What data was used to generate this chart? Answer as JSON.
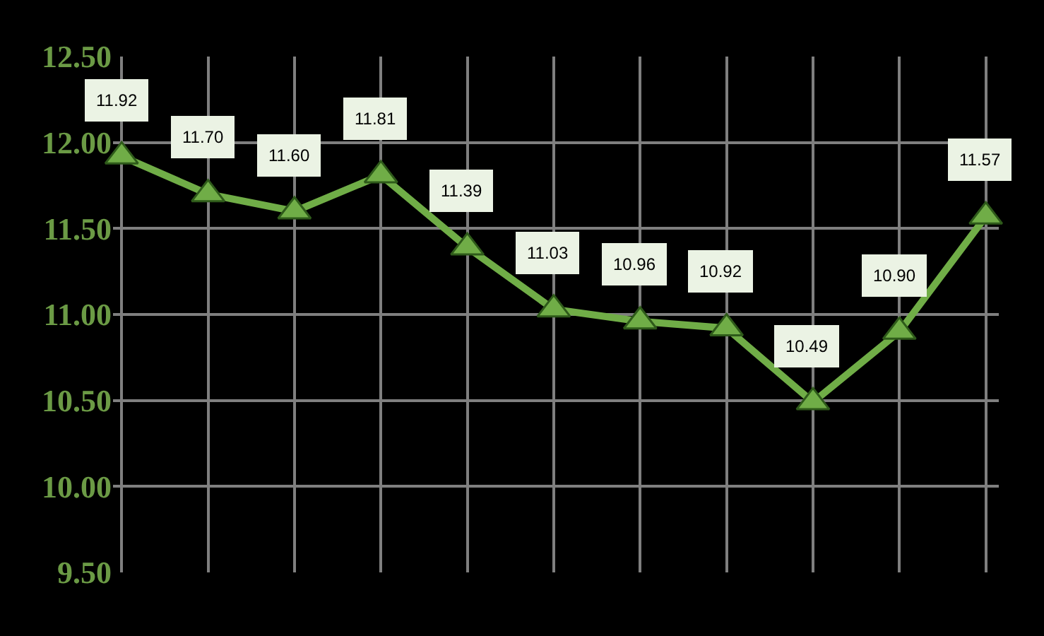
{
  "chart_data": {
    "type": "line",
    "categories": [
      null,
      null,
      null,
      null,
      null,
      null,
      null,
      null,
      null,
      null,
      null
    ],
    "series": [
      {
        "color": "#70ad47",
        "values": [
          11.92,
          11.7,
          11.6,
          11.81,
          11.39,
          11.03,
          10.96,
          10.92,
          10.49,
          10.9,
          11.57
        ],
        "value_labels": [
          "11.92",
          "11.70",
          "11.60",
          "11.81",
          "11.39",
          "11.03",
          "10.96",
          "10.92",
          "10.49",
          "10.90",
          "11.57"
        ]
      }
    ],
    "ylim": [
      9.5,
      12.5
    ],
    "yticks": [
      {
        "value": 9.5,
        "label": "9.50"
      },
      {
        "value": 10,
        "label": "10.00"
      },
      {
        "value": 10.5,
        "label": "10.50"
      },
      {
        "value": 11,
        "label": "11.00"
      },
      {
        "value": 11.5,
        "label": "11.50"
      },
      {
        "value": 12,
        "label": "12.00"
      },
      {
        "value": 12.5,
        "label": "12.50"
      }
    ],
    "grid": true,
    "marker": "triangle",
    "line_style": "solid",
    "tick_labels": "y"
  }
}
